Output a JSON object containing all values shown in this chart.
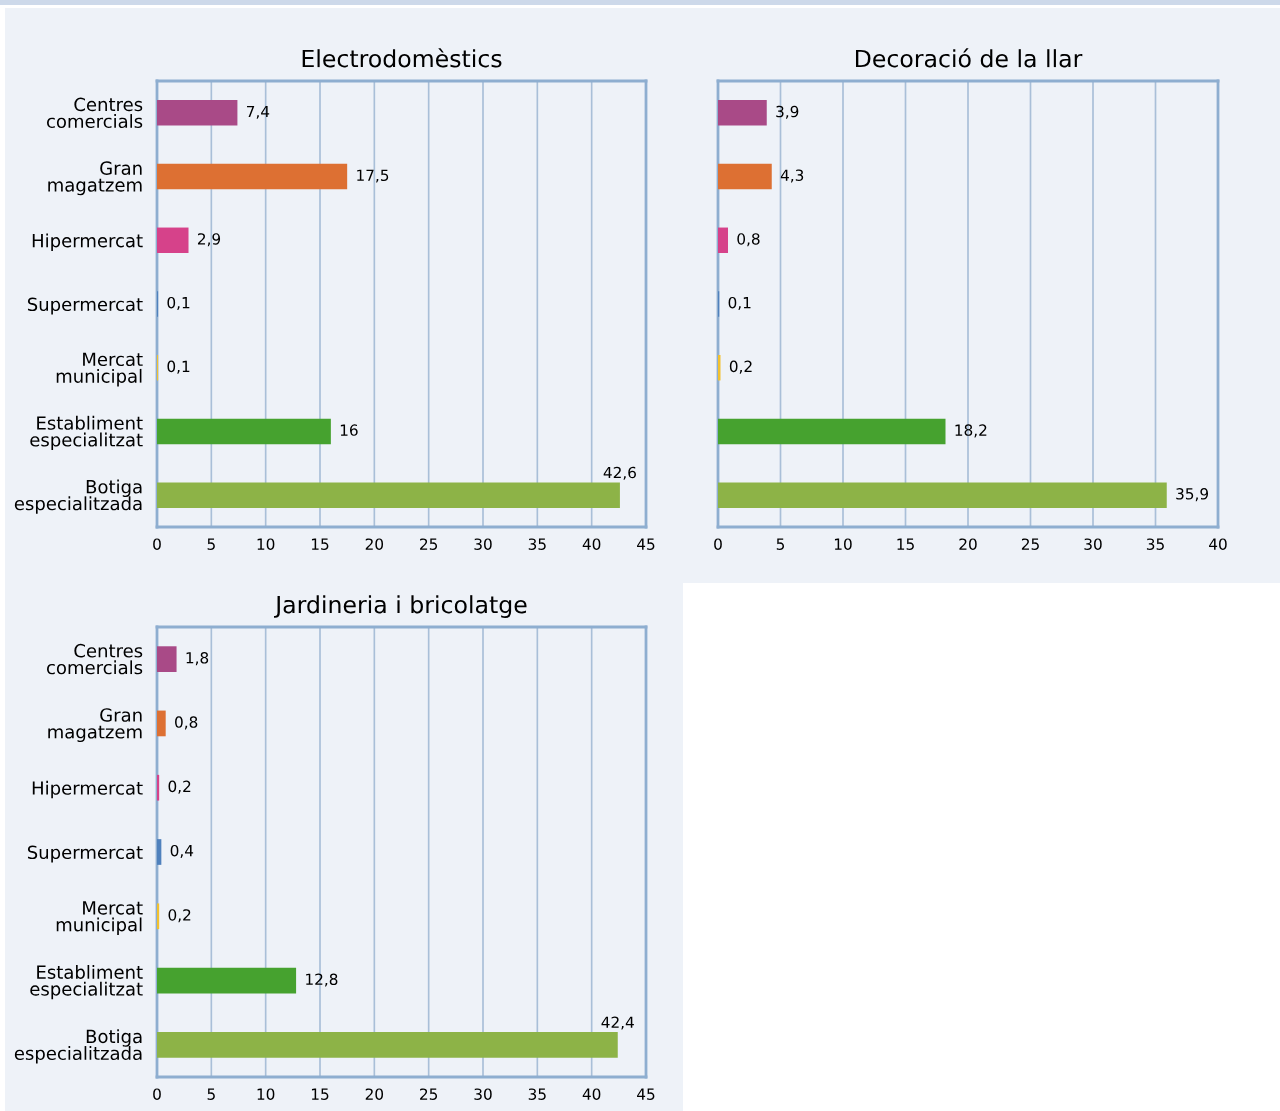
{
  "chart_data": [
    {
      "type": "bar",
      "orientation": "horizontal",
      "title": "Electrodomèstics",
      "categories": [
        "Centres\ncomercials",
        "Gran\nmagatzem",
        "Hipermercat",
        "Supermercat",
        "Mercat\nmunicipal",
        "Establiment\nespecialitzat",
        "Botiga\nespecialitzada"
      ],
      "values": [
        7.4,
        17.5,
        2.9,
        0.1,
        0.1,
        16,
        42.6
      ],
      "value_labels": [
        "7,4",
        "17,5",
        "2,9",
        "0,1",
        "0,1",
        "16",
        "42,6"
      ],
      "colors": [
        "#a94a87",
        "#dd7033",
        "#d6428a",
        "#4f81bd",
        "#f2c12e",
        "#46a22f",
        "#8db347"
      ],
      "xlim": [
        0,
        45
      ],
      "xticks": [
        0,
        5,
        10,
        15,
        20,
        25,
        30,
        35,
        40,
        45
      ],
      "grid": "x"
    },
    {
      "type": "bar",
      "orientation": "horizontal",
      "title": "Decoració de la llar",
      "categories": [
        null,
        null,
        null,
        null,
        null,
        null,
        null
      ],
      "values": [
        3.9,
        4.3,
        0.8,
        0.1,
        0.2,
        18.2,
        35.9
      ],
      "value_labels": [
        "3,9",
        "4,3",
        "0,8",
        "0,1",
        "0,2",
        "18,2",
        "35,9"
      ],
      "colors": [
        "#a94a87",
        "#dd7033",
        "#d6428a",
        "#4f81bd",
        "#f2c12e",
        "#46a22f",
        "#8db347"
      ],
      "xlim": [
        0,
        40
      ],
      "xticks": [
        0,
        5,
        10,
        15,
        20,
        25,
        30,
        35,
        40
      ],
      "grid": "x"
    },
    {
      "type": "bar",
      "orientation": "horizontal",
      "title": "Jardineria i bricolatge",
      "categories": [
        "Centres\ncomercials",
        "Gran\nmagatzem",
        "Hipermercat",
        "Supermercat",
        "Mercat\nmunicipal",
        "Establiment\nespecialitzat",
        "Botiga\nespecialitzada"
      ],
      "values": [
        1.8,
        0.8,
        0.2,
        0.4,
        0.2,
        12.8,
        42.4
      ],
      "value_labels": [
        "1,8",
        "0,8",
        "0,2",
        "0,4",
        "0,2",
        "12,8",
        "42,4"
      ],
      "colors": [
        "#a94a87",
        "#dd7033",
        "#d6428a",
        "#4f81bd",
        "#f2c12e",
        "#46a22f",
        "#8db347"
      ],
      "xlim": [
        0,
        45
      ],
      "xticks": [
        0,
        5,
        10,
        15,
        20,
        25,
        30,
        35,
        40,
        45
      ],
      "grid": "x"
    }
  ]
}
